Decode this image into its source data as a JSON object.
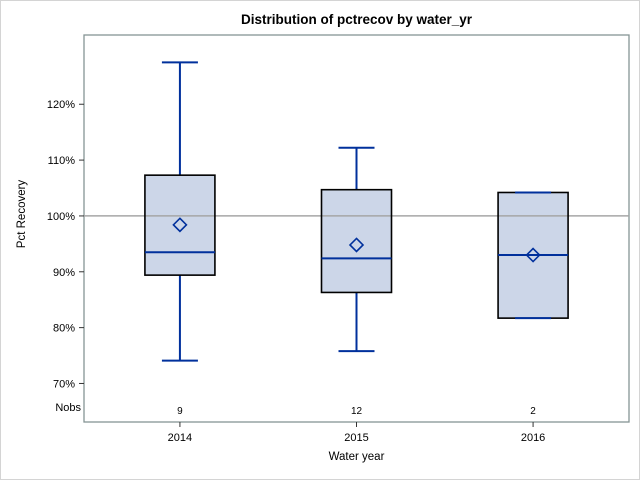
{
  "chart_data": {
    "type": "box",
    "title": "Distribution of pctrecov by water_yr",
    "xlabel": "Water year",
    "ylabel": "Pct Recovery",
    "categories": [
      "2014",
      "2015",
      "2016"
    ],
    "nobs_label": "Nobs",
    "nobs": [
      "9",
      "12",
      "2"
    ],
    "yticks": [
      {
        "value": 70,
        "label": "70%"
      },
      {
        "value": 80,
        "label": "80%"
      },
      {
        "value": 90,
        "label": "90%"
      },
      {
        "value": 100,
        "label": "100%"
      },
      {
        "value": 110,
        "label": "110%"
      },
      {
        "value": 120,
        "label": "120%"
      }
    ],
    "ylim": [
      63.1,
      132.4
    ],
    "reference_line": 100,
    "grid": false,
    "legend": "none",
    "series": [
      {
        "category": "2014",
        "n": 9,
        "whisker_low": 74.1,
        "q1": 89.4,
        "median": 93.5,
        "mean": 98.4,
        "q3": 107.3,
        "whisker_high": 127.5
      },
      {
        "category": "2015",
        "n": 12,
        "whisker_low": 75.8,
        "q1": 86.3,
        "median": 92.4,
        "mean": 94.8,
        "q3": 104.7,
        "whisker_high": 112.2
      },
      {
        "category": "2016",
        "n": 2,
        "whisker_low": 81.7,
        "q1": 81.7,
        "median": 93.0,
        "mean": 93.0,
        "q3": 104.2,
        "whisker_high": 104.2
      }
    ]
  },
  "colors": {
    "box_fill": "#ccd6e8",
    "box_border": "#000000",
    "line": "#00309c",
    "reference_line": "#a6a6a6",
    "wall_border": "#869494",
    "frame_border": "#d4d4d4",
    "tick": "#333333",
    "text": "#000000"
  }
}
